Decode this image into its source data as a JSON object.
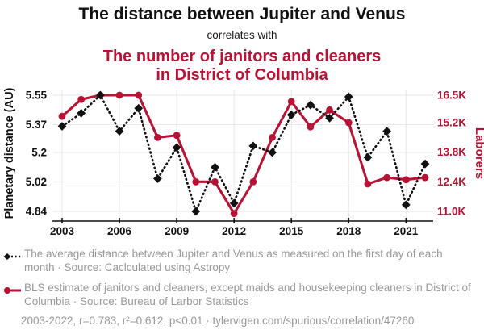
{
  "header": {
    "title": "The distance between Jupiter and Venus",
    "connector": "correlates with",
    "subtitle_line1": "The number of janitors and cleaners",
    "subtitle_line2": "in District of Columbia"
  },
  "chart_data": {
    "type": "line",
    "x": [
      2003,
      2004,
      2005,
      2006,
      2007,
      2008,
      2009,
      2010,
      2011,
      2012,
      2013,
      2014,
      2015,
      2016,
      2017,
      2018,
      2019,
      2020,
      2021,
      2022
    ],
    "x_ticks": [
      2003,
      2006,
      2009,
      2012,
      2015,
      2018,
      2021
    ],
    "grid": true,
    "left_axis": {
      "label": "Planetary distance (AU)",
      "tick_values": [
        5.55,
        5.37,
        5.2,
        5.02,
        4.84
      ],
      "tick_labels": [
        "5.55",
        "5.37",
        "5.2",
        "5.02",
        "4.84"
      ],
      "range": [
        4.84,
        5.55
      ],
      "color": "#111111"
    },
    "right_axis": {
      "label": "Laborers",
      "tick_values": [
        16.5,
        15.2,
        13.8,
        12.4,
        11.0
      ],
      "tick_labels": [
        "16.5K",
        "15.2K",
        "13.8K",
        "12.4K",
        "11.0K"
      ],
      "range": [
        11.0,
        16.5
      ],
      "color": "#b81234"
    },
    "series": [
      {
        "name": "jupiter-venus-distance",
        "axis": "right_axis_no",
        "use_axis": "left",
        "marker": "diamond",
        "line_style": "dotted",
        "color": "#111111",
        "values": [
          5.36,
          5.44,
          5.55,
          5.33,
          5.47,
          5.04,
          5.23,
          4.84,
          5.11,
          4.89,
          5.24,
          5.2,
          5.43,
          5.49,
          5.41,
          5.54,
          5.17,
          5.33,
          4.88,
          5.13
        ]
      },
      {
        "name": "janitors-cleaners-dc",
        "use_axis": "right",
        "marker": "circle",
        "line_style": "solid",
        "color": "#b81234",
        "values": [
          15.5,
          16.3,
          16.5,
          16.5,
          16.5,
          14.5,
          14.6,
          12.4,
          12.4,
          10.9,
          12.4,
          14.5,
          16.2,
          15.0,
          15.8,
          15.2,
          12.3,
          12.6,
          12.5,
          12.6
        ]
      }
    ]
  },
  "legend": {
    "items": [
      {
        "marker": "black-diamond-dotted",
        "text": "The average distance between Jupiter and Venus as measured on the first day of each month · Source: Caclculated using Astropy"
      },
      {
        "marker": "red-circle-solid",
        "text": "BLS estimate of janitors and cleaners, except maids and housekeeping cleaners in District of Columbia · Source: Bureau of Larbor Statistics"
      }
    ],
    "footnote": "2003-2022, r=0.783, r²=0.612, p<0.01 · tylervigen.com/spurious/correlation/47260"
  },
  "colors": {
    "accent_red": "#b81234",
    "text_black": "#111111",
    "legend_gray": "#999999",
    "gridline": "#e7e7e7"
  }
}
